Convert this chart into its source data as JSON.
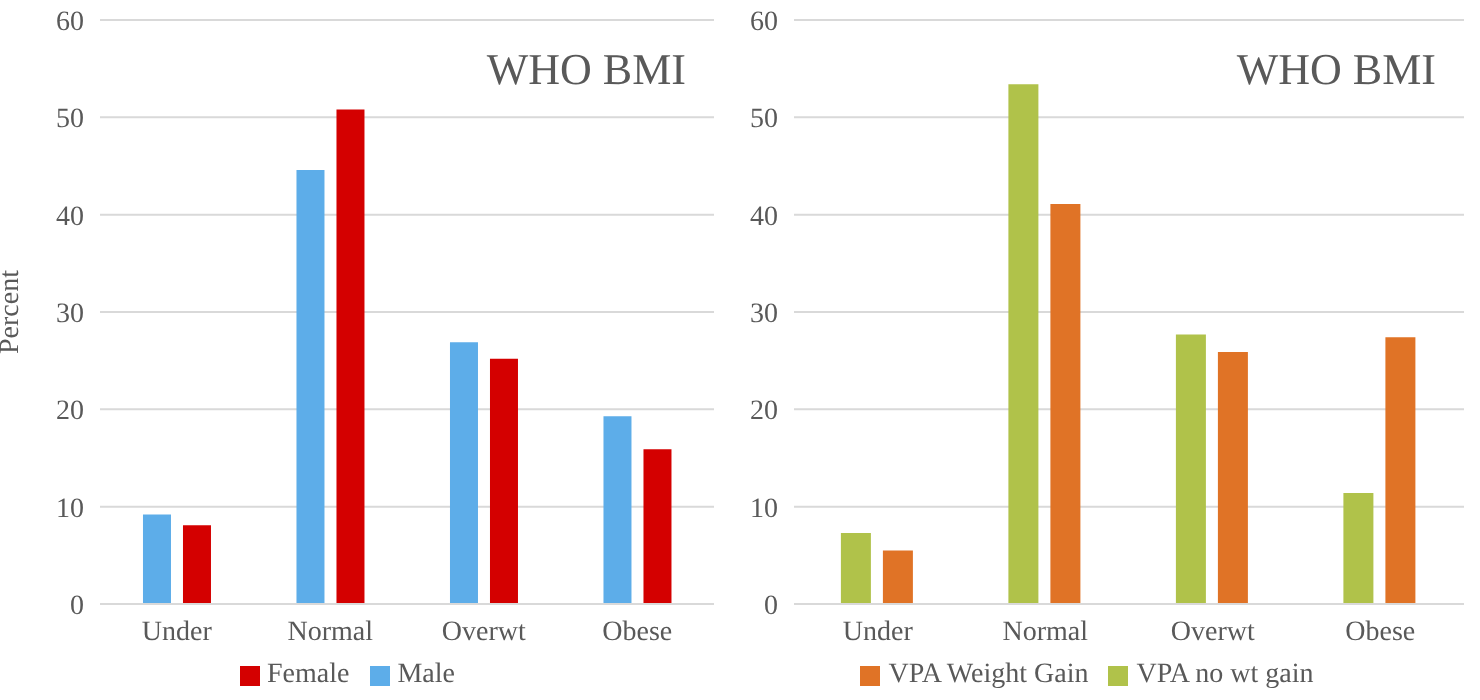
{
  "chart_data": [
    {
      "type": "bar",
      "title": "WHO BMI",
      "ylabel": "Percent",
      "categories": [
        "Under",
        "Normal",
        "Overwt",
        "Obese"
      ],
      "series": [
        {
          "name": "Male",
          "color": "#5dade9",
          "values": [
            9.2,
            44.6,
            26.9,
            19.3
          ]
        },
        {
          "name": "Female",
          "color": "#d40000",
          "values": [
            8.1,
            50.8,
            25.2,
            15.9
          ]
        }
      ],
      "ylim": [
        0,
        60
      ],
      "yticks": [
        0,
        10,
        20,
        30,
        40,
        50,
        60
      ],
      "grid": "y",
      "legend": "bottom"
    },
    {
      "type": "bar",
      "title": "WHO BMI",
      "categories": [
        "Under",
        "Normal",
        "Overwt",
        "Obese"
      ],
      "series": [
        {
          "name": "VPA no wt gain",
          "color": "#b0c24a",
          "values": [
            7.3,
            53.4,
            27.7,
            11.4
          ]
        },
        {
          "name": "VPA Weight Gain",
          "color": "#e07326",
          "values": [
            5.5,
            41.1,
            25.9,
            27.4
          ]
        }
      ],
      "ylim": [
        0,
        60
      ],
      "yticks": [
        0,
        10,
        20,
        30,
        40,
        50,
        60
      ],
      "grid": "y",
      "legend": "bottom"
    }
  ]
}
